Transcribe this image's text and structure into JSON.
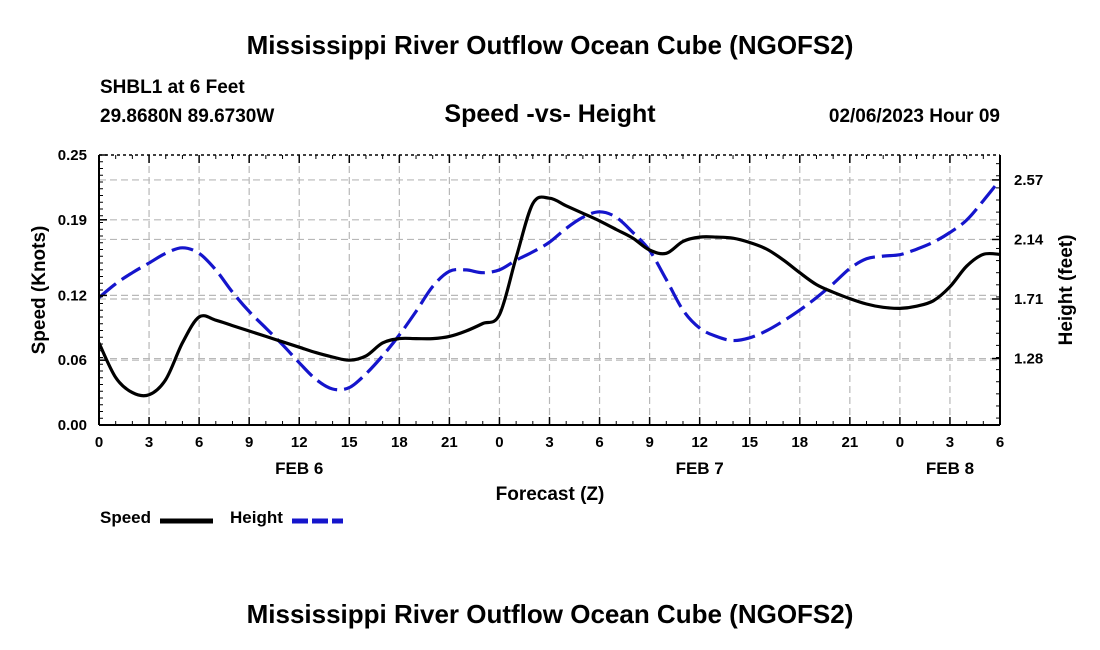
{
  "page": {
    "title": "Mississippi River Outflow Ocean Cube (NGOFS2)",
    "bottom_title": "Mississippi River Outflow Ocean Cube (NGOFS2)"
  },
  "chart_data": {
    "type": "line",
    "title": "Speed -vs- Height",
    "station": "SHBL1 at 6 Feet",
    "location": "29.8680N  89.6730W",
    "datetime": "02/06/2023 Hour 09",
    "xlabel": "Forecast (Z)",
    "ylabel_left": "Speed (Knots)",
    "ylabel_right": "Height (feet)",
    "x_range": [
      0,
      54
    ],
    "x_ticks": [
      0,
      3,
      6,
      9,
      12,
      15,
      18,
      21,
      24,
      27,
      30,
      33,
      36,
      39,
      42,
      45,
      48,
      51,
      54
    ],
    "x_tick_labels": [
      "0",
      "3",
      "6",
      "9",
      "12",
      "15",
      "18",
      "21",
      "0",
      "3",
      "6",
      "9",
      "12",
      "15",
      "18",
      "21",
      "0",
      "3",
      "6"
    ],
    "date_labels": [
      {
        "x": 12,
        "label": "FEB 6"
      },
      {
        "x": 36,
        "label": "FEB 7"
      },
      {
        "x": 51,
        "label": "FEB 8"
      }
    ],
    "ylim_left": [
      0,
      0.25
    ],
    "y_left_ticks": [
      0.0,
      0.06,
      0.12,
      0.19,
      0.25
    ],
    "y_left_tick_labels": [
      "0.00",
      "0.06",
      "0.12",
      "0.19",
      "0.25"
    ],
    "ylim_right": [
      0.8,
      2.75
    ],
    "y_right_ticks": [
      1.28,
      1.71,
      2.14,
      2.57
    ],
    "y_right_tick_labels": [
      "1.28",
      "1.71",
      "2.14",
      "2.57"
    ],
    "series": [
      {
        "name": "Speed",
        "axis": "left",
        "color": "#000000",
        "style": "solid",
        "x": [
          0,
          1,
          2,
          3,
          4,
          5,
          6,
          7,
          8,
          9,
          10,
          11,
          12,
          13,
          14,
          15,
          16,
          17,
          18,
          19,
          20,
          21,
          22,
          23,
          24,
          25,
          26,
          27,
          28,
          29,
          30,
          31,
          32,
          33,
          34,
          35,
          36,
          37,
          38,
          39,
          40,
          41,
          42,
          43,
          44,
          45,
          46,
          47,
          48,
          49,
          50,
          51,
          52,
          53,
          54
        ],
        "values": [
          0.076,
          0.044,
          0.03,
          0.028,
          0.042,
          0.076,
          0.1,
          0.097,
          0.092,
          0.087,
          0.082,
          0.077,
          0.072,
          0.067,
          0.063,
          0.06,
          0.064,
          0.076,
          0.08,
          0.08,
          0.08,
          0.082,
          0.087,
          0.094,
          0.102,
          0.155,
          0.205,
          0.21,
          0.203,
          0.196,
          0.189,
          0.181,
          0.173,
          0.162,
          0.159,
          0.17,
          0.174,
          0.174,
          0.173,
          0.169,
          0.163,
          0.153,
          0.141,
          0.13,
          0.123,
          0.117,
          0.112,
          0.109,
          0.108,
          0.11,
          0.115,
          0.128,
          0.147,
          0.158,
          0.158
        ]
      },
      {
        "name": "Height",
        "axis": "right",
        "color": "#1515cc",
        "style": "dashed",
        "x": [
          0,
          1,
          2,
          3,
          4,
          5,
          6,
          7,
          8,
          9,
          10,
          11,
          12,
          13,
          14,
          15,
          16,
          17,
          18,
          19,
          20,
          21,
          22,
          23,
          24,
          25,
          26,
          27,
          28,
          29,
          30,
          31,
          32,
          33,
          34,
          35,
          36,
          37,
          38,
          39,
          40,
          41,
          42,
          43,
          44,
          45,
          46,
          47,
          48,
          49,
          50,
          51,
          52,
          53,
          54
        ],
        "values": [
          1.72,
          1.82,
          1.9,
          1.97,
          2.04,
          2.08,
          2.04,
          1.92,
          1.76,
          1.62,
          1.5,
          1.38,
          1.25,
          1.13,
          1.06,
          1.07,
          1.17,
          1.3,
          1.45,
          1.62,
          1.8,
          1.91,
          1.92,
          1.9,
          1.92,
          1.99,
          2.05,
          2.12,
          2.22,
          2.3,
          2.34,
          2.3,
          2.19,
          2.06,
          1.85,
          1.63,
          1.5,
          1.44,
          1.41,
          1.43,
          1.48,
          1.55,
          1.63,
          1.72,
          1.82,
          1.93,
          2.0,
          2.02,
          2.03,
          2.07,
          2.12,
          2.19,
          2.28,
          2.42,
          2.57
        ]
      }
    ],
    "legend": [
      {
        "label": "Speed",
        "color": "#000000",
        "style": "solid"
      },
      {
        "label": "Height",
        "color": "#1515cc",
        "style": "dashed"
      }
    ]
  }
}
